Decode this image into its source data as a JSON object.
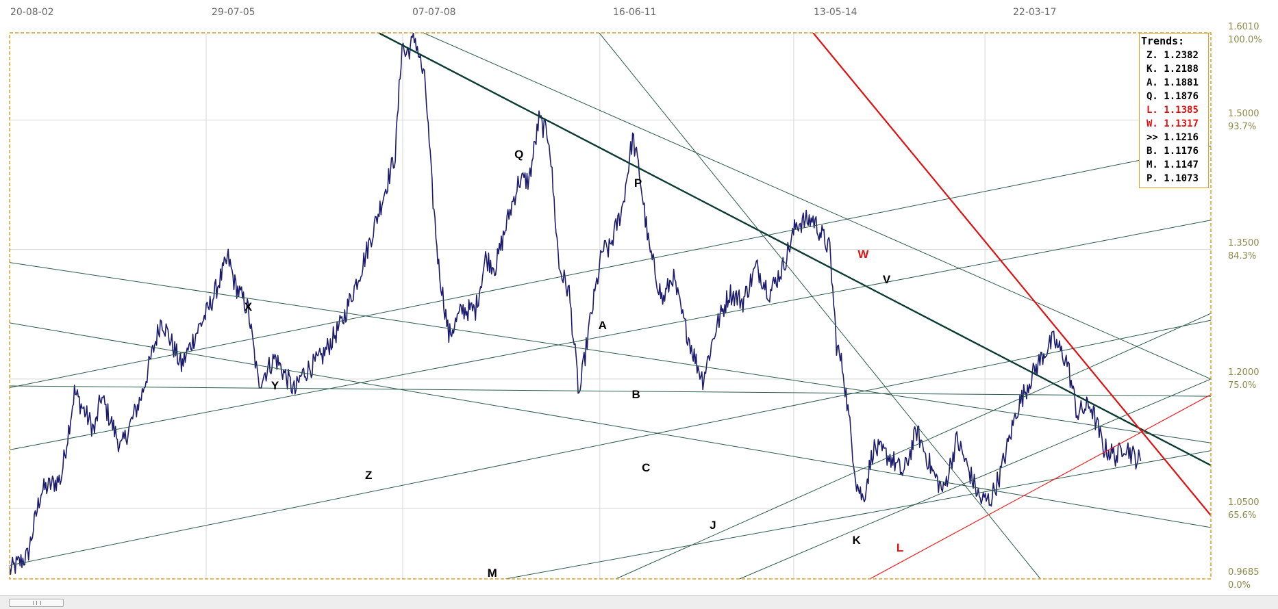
{
  "chart_data": {
    "type": "line",
    "title": "",
    "xlabel": "",
    "ylabel": "",
    "x_date_labels": [
      "20-08-02",
      "29-07-05",
      "07-07-08",
      "16-06-11",
      "13-05-14",
      "22-03-17"
    ],
    "y_price_labels": [
      "1.6010",
      "1.5000",
      "1.3500",
      "1.2000",
      "1.0500",
      "0.9685"
    ],
    "y_percent_labels": [
      "100.0%",
      "93.7%",
      "84.3%",
      "75.0%",
      "65.6%",
      "0.0%"
    ],
    "ylim": [
      0.9685,
      1.601
    ],
    "series_color": "#1a1a6e",
    "grid": true,
    "price_series": {
      "anchors": [
        [
          2002.63,
          0.978
        ],
        [
          2002.9,
          0.995
        ],
        [
          2003.1,
          1.07
        ],
        [
          2003.4,
          1.085
        ],
        [
          2003.6,
          1.185
        ],
        [
          2003.9,
          1.14
        ],
        [
          2004.0,
          1.18
        ],
        [
          2004.3,
          1.12
        ],
        [
          2004.6,
          1.18
        ],
        [
          2004.9,
          1.27
        ],
        [
          2005.2,
          1.215
        ],
        [
          2005.4,
          1.25
        ],
        [
          2005.6,
          1.28
        ],
        [
          2005.9,
          1.34
        ],
        [
          2006.0,
          1.31
        ],
        [
          2006.2,
          1.28
        ],
        [
          2006.35,
          1.195
        ],
        [
          2006.6,
          1.225
        ],
        [
          2006.9,
          1.185
        ],
        [
          2007.0,
          1.205
        ],
        [
          2007.3,
          1.225
        ],
        [
          2007.6,
          1.265
        ],
        [
          2007.9,
          1.33
        ],
        [
          2008.1,
          1.38
        ],
        [
          2008.4,
          1.46
        ],
        [
          2008.5,
          1.59
        ],
        [
          2008.55,
          1.575
        ],
        [
          2008.7,
          1.595
        ],
        [
          2008.85,
          1.54
        ],
        [
          2008.95,
          1.42
        ],
        [
          2009.05,
          1.33
        ],
        [
          2009.2,
          1.25
        ],
        [
          2009.4,
          1.28
        ],
        [
          2009.6,
          1.28
        ],
        [
          2009.75,
          1.34
        ],
        [
          2009.9,
          1.33
        ],
        [
          2010.1,
          1.39
        ],
        [
          2010.25,
          1.43
        ],
        [
          2010.4,
          1.43
        ],
        [
          2010.55,
          1.5
        ],
        [
          2010.7,
          1.48
        ],
        [
          2010.85,
          1.33
        ],
        [
          2011.0,
          1.3
        ],
        [
          2011.15,
          1.18
        ],
        [
          2011.3,
          1.26
        ],
        [
          2011.5,
          1.35
        ],
        [
          2011.6,
          1.35
        ],
        [
          2011.8,
          1.4
        ],
        [
          2011.95,
          1.48
        ],
        [
          2012.05,
          1.44
        ],
        [
          2012.2,
          1.35
        ],
        [
          2012.4,
          1.29
        ],
        [
          2012.55,
          1.32
        ],
        [
          2012.7,
          1.27
        ],
        [
          2012.9,
          1.22
        ],
        [
          2013.0,
          1.2
        ],
        [
          2013.2,
          1.26
        ],
        [
          2013.4,
          1.3
        ],
        [
          2013.6,
          1.29
        ],
        [
          2013.8,
          1.33
        ],
        [
          2014.0,
          1.3
        ],
        [
          2014.2,
          1.33
        ],
        [
          2014.4,
          1.38
        ],
        [
          2014.65,
          1.385
        ],
        [
          2014.9,
          1.35
        ],
        [
          2015.0,
          1.24
        ],
        [
          2015.1,
          1.21
        ],
        [
          2015.3,
          1.08
        ],
        [
          2015.4,
          1.06
        ],
        [
          2015.55,
          1.12
        ],
        [
          2015.8,
          1.11
        ],
        [
          2016.0,
          1.09
        ],
        [
          2016.2,
          1.14
        ],
        [
          2016.45,
          1.09
        ],
        [
          2016.6,
          1.07
        ],
        [
          2016.8,
          1.13
        ],
        [
          2017.0,
          1.09
        ],
        [
          2017.15,
          1.06
        ],
        [
          2017.3,
          1.06
        ],
        [
          2017.45,
          1.09
        ],
        [
          2017.7,
          1.165
        ],
        [
          2017.9,
          1.2
        ],
        [
          2018.1,
          1.23
        ],
        [
          2018.25,
          1.245
        ],
        [
          2018.45,
          1.22
        ],
        [
          2018.6,
          1.16
        ],
        [
          2018.8,
          1.17
        ],
        [
          2019.0,
          1.12
        ],
        [
          2019.2,
          1.11
        ],
        [
          2019.3,
          1.125
        ],
        [
          2019.45,
          1.11
        ],
        [
          2019.55,
          1.105
        ]
      ]
    },
    "trend_lines": [
      {
        "label": "P",
        "color": "#0a3a30",
        "width": 2.4,
        "x": [
          2008.15,
          2020.6
        ],
        "y": [
          1.601,
          1.1
        ]
      },
      {
        "label": "Q",
        "color": "#2a5a4a",
        "width": 1,
        "x": [
          2008.82,
          2020.6
        ],
        "y": [
          1.601,
          1.2
        ]
      },
      {
        "label": "V",
        "color": "#2a5a4a",
        "width": 1,
        "x": [
          2011.45,
          2018.05
        ],
        "y": [
          1.601,
          0.9685
        ]
      },
      {
        "label": "A",
        "color": "#2a5a4a",
        "width": 1,
        "x": [
          2002.63,
          2020.6
        ],
        "y": [
          1.335,
          1.126
        ]
      },
      {
        "label": "B",
        "color": "#2a5a4a",
        "width": 1,
        "x": [
          2002.63,
          2020.6
        ],
        "y": [
          1.265,
          1.028
        ]
      },
      {
        "label": "C",
        "color": "#2a5a4a",
        "width": 1,
        "x": [
          2002.63,
          2020.6
        ],
        "y": [
          1.192,
          1.18
        ]
      },
      {
        "label": "X",
        "color": "#2a5a4a",
        "width": 1,
        "x": [
          2002.63,
          2020.6
        ],
        "y": [
          1.19,
          1.47
        ]
      },
      {
        "label": "Y",
        "color": "#2a5a4a",
        "width": 1,
        "x": [
          2002.63,
          2020.6
        ],
        "y": [
          1.118,
          1.384
        ]
      },
      {
        "label": "Z",
        "color": "#2a5a4a",
        "width": 1,
        "x": [
          2002.63,
          2020.6
        ],
        "y": [
          0.984,
          1.268
        ]
      },
      {
        "label": "J",
        "color": "#2a5a4a",
        "width": 1,
        "x": [
          2011.7,
          2020.6
        ],
        "y": [
          0.9685,
          1.276
        ]
      },
      {
        "label": "K",
        "color": "#2a5a4a",
        "width": 1,
        "x": [
          2013.55,
          2020.6
        ],
        "y": [
          0.9685,
          1.2
        ]
      },
      {
        "label": "M",
        "color": "#2a5a4a",
        "width": 1,
        "x": [
          2010.05,
          2020.6
        ],
        "y": [
          0.9685,
          1.117
        ]
      },
      {
        "label": "W",
        "color": "#e01010",
        "width": 2.2,
        "x": [
          2014.65,
          2020.6
        ],
        "y": [
          1.601,
          1.042
        ]
      },
      {
        "label": "L",
        "color": "#ee2020",
        "width": 1.2,
        "x": [
          2015.5,
          2020.6
        ],
        "y": [
          0.9685,
          1.182
        ]
      }
    ],
    "trend_letters": [
      {
        "text": "Q",
        "color": "#000000",
        "x": 2010.25,
        "y": 1.46
      },
      {
        "text": "P",
        "color": "#000000",
        "x": 2012.03,
        "y": 1.427
      },
      {
        "text": "V",
        "color": "#000000",
        "x": 2015.75,
        "y": 1.315
      },
      {
        "text": "X",
        "color": "#000000",
        "x": 2006.2,
        "y": 1.283
      },
      {
        "text": "A",
        "color": "#000000",
        "x": 2011.5,
        "y": 1.262
      },
      {
        "text": "Y",
        "color": "#000000",
        "x": 2006.6,
        "y": 1.192
      },
      {
        "text": "B",
        "color": "#000000",
        "x": 2012.0,
        "y": 1.182
      },
      {
        "text": "C",
        "color": "#000000",
        "x": 2012.15,
        "y": 1.097
      },
      {
        "text": "Z",
        "color": "#000000",
        "x": 2008.0,
        "y": 1.088
      },
      {
        "text": "J",
        "color": "#000000",
        "x": 2013.15,
        "y": 1.03
      },
      {
        "text": "K",
        "color": "#000000",
        "x": 2015.3,
        "y": 1.013
      },
      {
        "text": "M",
        "color": "#000000",
        "x": 2009.85,
        "y": 0.975
      },
      {
        "text": "W",
        "color": "#e01010",
        "x": 2015.4,
        "y": 1.344
      },
      {
        "text": "L",
        "color": "#e01010",
        "x": 2015.95,
        "y": 1.004
      }
    ],
    "legend_position": "top-right",
    "legend_title": "Trends:",
    "legend": [
      {
        "key": "Z.",
        "value": "1.2382",
        "color": "#000000"
      },
      {
        "key": "K.",
        "value": "1.2188",
        "color": "#000000"
      },
      {
        "key": "A.",
        "value": "1.1881",
        "color": "#000000"
      },
      {
        "key": "Q.",
        "value": "1.1876",
        "color": "#000000"
      },
      {
        "key": "L.",
        "value": "1.1385",
        "color": "#e01010"
      },
      {
        "key": "W.",
        "value": "1.1317",
        "color": "#e01010"
      },
      {
        "key": ">>",
        "value": "1.1216",
        "color": "#000000"
      },
      {
        "key": "B.",
        "value": "1.1176",
        "color": "#000000"
      },
      {
        "key": "M.",
        "value": "1.1147",
        "color": "#000000"
      },
      {
        "key": "P.",
        "value": "1.1073",
        "color": "#000000"
      }
    ],
    "frame_color": "#e0a020",
    "grid_color": "#d8d8d8"
  }
}
